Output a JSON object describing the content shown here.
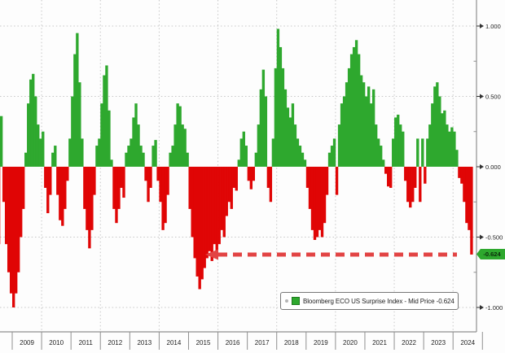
{
  "chart_data": {
    "type": "bar",
    "description": "Bloomberg ECO US Surprise Index history, green above zero and red below zero",
    "frequency": "monthly",
    "start_month": "2008-07",
    "end_month": "2024-08",
    "values": [
      -0.55,
      0.36,
      -0.25,
      -0.55,
      -0.75,
      -0.9,
      -1.0,
      -0.9,
      -0.75,
      -0.5,
      -0.3,
      0.1,
      0.45,
      0.62,
      0.66,
      0.5,
      0.3,
      0.2,
      0.25,
      -0.15,
      -0.33,
      -0.2,
      0.1,
      0.15,
      -0.2,
      -0.38,
      -0.42,
      -0.3,
      -0.1,
      0.2,
      0.5,
      0.8,
      0.95,
      0.6,
      0.2,
      -0.3,
      -0.45,
      -0.58,
      -0.45,
      -0.2,
      0.15,
      0.2,
      0.45,
      0.65,
      0.72,
      0.4,
      0.05,
      -0.3,
      -0.4,
      -0.3,
      -0.15,
      -0.22,
      0.1,
      0.15,
      0.2,
      0.35,
      0.45,
      0.3,
      0.15,
      0.1,
      -0.1,
      -0.25,
      -0.15,
      0.15,
      0.19,
      -0.1,
      -0.25,
      -0.45,
      -0.4,
      -0.2,
      0.1,
      0.15,
      0.3,
      0.45,
      0.43,
      0.3,
      0.27,
      0.1,
      -0.3,
      -0.5,
      -0.65,
      -0.78,
      -0.87,
      -0.8,
      -0.72,
      -0.65,
      -0.6,
      -0.67,
      -0.55,
      -0.6,
      -0.55,
      -0.45,
      -0.5,
      -0.35,
      -0.25,
      -0.3,
      -0.15,
      -0.17,
      0.05,
      0.2,
      0.25,
      0.15,
      -0.1,
      -0.16,
      -0.1,
      0.1,
      0.3,
      0.55,
      0.69,
      0.5,
      -0.15,
      -0.25,
      0.2,
      0.7,
      0.98,
      0.85,
      0.7,
      0.55,
      0.42,
      0.35,
      0.45,
      0.3,
      0.2,
      0.15,
      0.1,
      0.05,
      -0.15,
      -0.3,
      -0.45,
      -0.52,
      -0.5,
      -0.45,
      -0.5,
      -0.4,
      -0.2,
      0.1,
      0.15,
      0.2,
      -0.2,
      0.3,
      0.45,
      0.5,
      0.6,
      0.7,
      0.8,
      0.85,
      0.9,
      0.8,
      0.65,
      0.6,
      0.5,
      0.57,
      0.45,
      0.55,
      0.3,
      0.2,
      0.15,
      0.05,
      -0.05,
      -0.14,
      -0.15,
      0.2,
      0.35,
      0.37,
      0.3,
      0.25,
      -0.1,
      -0.25,
      -0.29,
      -0.25,
      -0.15,
      0.2,
      -0.25,
      0.2,
      -0.12,
      0.2,
      0.3,
      0.45,
      0.57,
      0.6,
      0.5,
      0.38,
      0.4,
      0.3,
      0.25,
      0.28,
      0.25,
      0.12,
      -0.08,
      -0.12,
      -0.25,
      -0.4,
      -0.45,
      -0.624
    ],
    "last_value": -0.624,
    "x_axis": {
      "years": [
        "2009",
        "2010",
        "2011",
        "2012",
        "2013",
        "2014",
        "2015",
        "2016",
        "2017",
        "2018",
        "2019",
        "2020",
        "2021",
        "2022",
        "2023",
        "2024"
      ]
    },
    "y_axis": {
      "ticks": [
        {
          "label": "1.000",
          "value": 1.0
        },
        {
          "label": "0.500",
          "value": 0.5
        },
        {
          "label": "0.000",
          "value": 0.0
        },
        {
          "label": "-0.500",
          "value": -0.5
        },
        {
          "label": "-1.000",
          "value": -1.0
        }
      ],
      "minor_tick_values": [
        0.75,
        0.25,
        -0.25,
        -0.75
      ],
      "gridline_values": [
        1.0,
        0.5,
        -0.5,
        -1.0
      ],
      "ylim": [
        -1.17,
        1.19
      ],
      "side": "right"
    },
    "grid": true,
    "legend": {
      "position": "bottom-right",
      "label": "Bloomberg ECO US Surprise Index - Mid Price -0.624",
      "marker_color": "#2EA82E"
    },
    "badge": {
      "text": "-0.624",
      "value": -0.624,
      "bg_color": "#2EA82E"
    },
    "annotation_arrow": {
      "at_value": -0.624,
      "direction": "points-left",
      "style": "dashed",
      "color": "#E24444"
    },
    "colors": {
      "positive_bar": "#2EA82E",
      "negative_bar": "#E00505",
      "gridline": "#c6c6c6",
      "axis": "#8f8f8f",
      "text": "#1f1f1f",
      "background": "#fdfdfd"
    }
  }
}
